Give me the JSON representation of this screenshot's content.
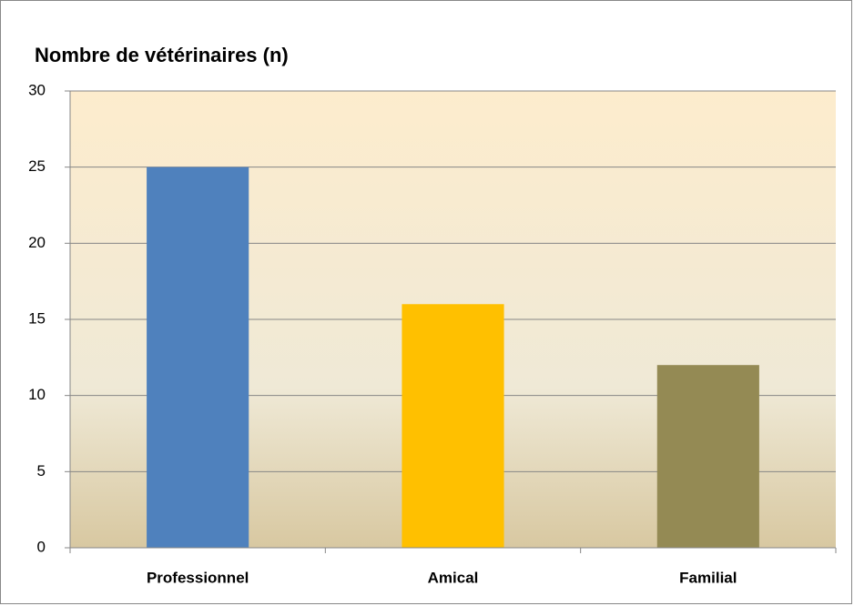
{
  "chart_data": {
    "type": "bar",
    "title": "Nombre de vétérinaires (n)",
    "categories": [
      "Professionnel",
      "Amical",
      "Familial"
    ],
    "values": [
      25,
      16,
      12
    ],
    "colors": [
      "#4f81bd",
      "#ffc000",
      "#948a54"
    ],
    "ylim": [
      0,
      30
    ],
    "yticks": [
      0,
      5,
      10,
      15,
      20,
      25,
      30
    ],
    "grid": true
  }
}
